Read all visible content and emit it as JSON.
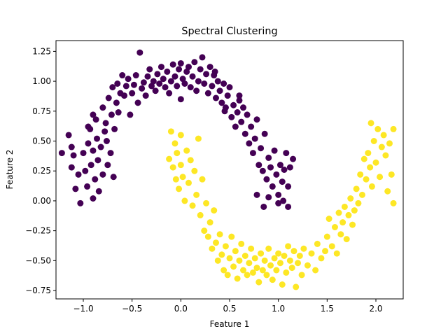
{
  "chart_data": {
    "type": "scatter",
    "title": "Spectral Clustering",
    "xlabel": "Feature 1",
    "ylabel": "Feature 2",
    "xlim": [
      -1.28,
      2.28
    ],
    "ylim": [
      -0.82,
      1.34
    ],
    "xticks": [
      -1.0,
      -0.5,
      0.0,
      0.5,
      1.0,
      1.5,
      2.0
    ],
    "xtick_labels": [
      "−1.0",
      "−0.5",
      "0.0",
      "0.5",
      "1.0",
      "1.5",
      "2.0"
    ],
    "yticks": [
      -0.75,
      -0.5,
      -0.25,
      0.0,
      0.25,
      0.5,
      0.75,
      1.0,
      1.25
    ],
    "ytick_labels": [
      "−0.75",
      "−0.50",
      "−0.25",
      "0.00",
      "0.25",
      "0.50",
      "0.75",
      "1.00",
      "1.25"
    ],
    "grid": false,
    "legend": "none",
    "colors": {
      "cluster_0": "#440154",
      "cluster_1": "#fde725"
    },
    "series": [
      {
        "color": "#440154",
        "points": [
          [
            -1.22,
            0.4
          ],
          [
            -1.15,
            0.55
          ],
          [
            -1.12,
            0.28
          ],
          [
            -1.1,
            0.38
          ],
          [
            -1.08,
            0.1
          ],
          [
            -1.05,
            0.22
          ],
          [
            -1.03,
            -0.02
          ],
          [
            -1.0,
            0.4
          ],
          [
            -0.98,
            0.25
          ],
          [
            -0.96,
            0.12
          ],
          [
            -0.95,
            0.48
          ],
          [
            -0.93,
            0.6
          ],
          [
            -0.92,
            0.3
          ],
          [
            -0.9,
            0.02
          ],
          [
            -0.9,
            0.42
          ],
          [
            -0.88,
            0.18
          ],
          [
            -0.87,
            0.68
          ],
          [
            -0.86,
            0.52
          ],
          [
            -0.85,
            0.34
          ],
          [
            -0.84,
            0.08
          ],
          [
            -0.82,
            0.45
          ],
          [
            -0.8,
            0.78
          ],
          [
            -0.8,
            0.22
          ],
          [
            -0.78,
            0.58
          ],
          [
            -0.77,
            0.65
          ],
          [
            -0.76,
            0.5
          ],
          [
            -0.75,
            0.3
          ],
          [
            -0.74,
            0.86
          ],
          [
            -0.72,
            0.4
          ],
          [
            -0.71,
            0.72
          ],
          [
            -0.7,
            0.95
          ],
          [
            -0.69,
            0.2
          ],
          [
            -0.68,
            0.6
          ],
          [
            -0.66,
            0.82
          ],
          [
            -0.65,
            0.98
          ],
          [
            -0.64,
            0.74
          ],
          [
            -0.62,
            0.9
          ],
          [
            -0.6,
            1.05
          ],
          [
            -0.58,
            0.88
          ],
          [
            -0.56,
            0.96
          ],
          [
            -0.54,
            1.02
          ],
          [
            -0.52,
            0.72
          ],
          [
            -0.5,
            0.9
          ],
          [
            -0.48,
            0.97
          ],
          [
            -0.46,
            1.05
          ],
          [
            -0.44,
            0.82
          ],
          [
            -0.42,
            1.24
          ],
          [
            -0.4,
            0.94
          ],
          [
            -0.38,
            0.99
          ],
          [
            -0.36,
            0.88
          ],
          [
            -0.34,
            1.04
          ],
          [
            -0.32,
            1.1
          ],
          [
            -0.3,
            0.96
          ],
          [
            -0.28,
            1.0
          ],
          [
            -0.26,
            0.92
          ],
          [
            -0.24,
            1.06
          ],
          [
            -0.22,
            0.98
          ],
          [
            -0.2,
            1.12
          ],
          [
            -0.18,
            1.02
          ],
          [
            -0.16,
            0.95
          ],
          [
            -0.14,
            1.08
          ],
          [
            -0.12,
            0.9
          ],
          [
            -0.1,
            1.0
          ],
          [
            -0.08,
            1.14
          ],
          [
            -0.06,
            1.04
          ],
          [
            -0.04,
            0.96
          ],
          [
            -0.02,
            1.1
          ],
          [
            0.0,
            1.15
          ],
          [
            0.0,
            0.85
          ],
          [
            0.02,
            1.02
          ],
          [
            0.04,
            0.98
          ],
          [
            0.06,
            1.08
          ],
          [
            0.08,
            1.12
          ],
          [
            0.1,
            0.95
          ],
          [
            0.12,
            1.04
          ],
          [
            0.14,
            1.16
          ],
          [
            0.16,
            0.92
          ],
          [
            0.18,
            1.0
          ],
          [
            0.2,
            1.1
          ],
          [
            0.22,
            1.2
          ],
          [
            0.24,
            0.98
          ],
          [
            0.26,
            1.06
          ],
          [
            0.28,
            0.9
          ],
          [
            0.3,
            1.12
          ],
          [
            0.32,
            0.96
          ],
          [
            0.34,
            1.05
          ],
          [
            0.36,
            0.86
          ],
          [
            0.38,
            1.0
          ],
          [
            0.4,
            0.92
          ],
          [
            0.42,
            0.82
          ],
          [
            0.44,
            0.98
          ],
          [
            0.46,
            0.78
          ],
          [
            0.48,
            0.88
          ],
          [
            0.5,
            0.95
          ],
          [
            0.52,
            0.7
          ],
          [
            0.54,
            0.8
          ],
          [
            0.56,
            0.62
          ],
          [
            0.58,
            0.74
          ],
          [
            0.6,
            0.84
          ],
          [
            0.62,
            0.66
          ],
          [
            0.64,
            0.78
          ],
          [
            0.66,
            0.56
          ],
          [
            0.68,
            0.72
          ],
          [
            0.7,
            0.48
          ],
          [
            0.72,
            0.62
          ],
          [
            0.74,
            0.4
          ],
          [
            0.76,
            0.52
          ],
          [
            0.78,
            0.68
          ],
          [
            0.8,
            0.3
          ],
          [
            0.82,
            0.44
          ],
          [
            0.84,
            0.25
          ],
          [
            0.86,
            0.56
          ],
          [
            0.88,
            0.18
          ],
          [
            0.9,
            0.36
          ],
          [
            0.92,
            0.28
          ],
          [
            0.94,
            0.12
          ],
          [
            0.96,
            0.42
          ],
          [
            0.98,
            0.22
          ],
          [
            1.0,
            0.05
          ],
          [
            1.02,
            0.3
          ],
          [
            1.04,
            0.16
          ],
          [
            1.06,
            0.26
          ],
          [
            1.08,
            0.4
          ],
          [
            1.1,
            0.12
          ],
          [
            1.12,
            0.28
          ],
          [
            1.15,
            0.35
          ],
          [
            0.78,
            0.05
          ],
          [
            0.85,
            -0.05
          ],
          [
            0.9,
            0.03
          ],
          [
            1.0,
            -0.02
          ],
          [
            1.05,
            0.0
          ],
          [
            1.1,
            -0.05
          ],
          [
            0.6,
            0.88
          ],
          [
            0.45,
            0.75
          ],
          [
            0.35,
            1.08
          ],
          [
            -0.9,
            0.72
          ],
          [
            -0.95,
            0.62
          ],
          [
            -1.12,
            0.45
          ]
        ]
      },
      {
        "color": "#fde725",
        "points": [
          [
            -0.1,
            0.58
          ],
          [
            -0.12,
            0.35
          ],
          [
            -0.08,
            0.28
          ],
          [
            -0.06,
            0.48
          ],
          [
            -0.05,
            0.18
          ],
          [
            -0.04,
            0.4
          ],
          [
            -0.02,
            0.1
          ],
          [
            0.0,
            0.55
          ],
          [
            0.0,
            0.3
          ],
          [
            0.02,
            0.2
          ],
          [
            0.04,
            0.0
          ],
          [
            0.06,
            0.42
          ],
          [
            0.08,
            0.15
          ],
          [
            0.1,
            0.34
          ],
          [
            0.12,
            -0.04
          ],
          [
            0.14,
            0.25
          ],
          [
            0.16,
            0.05
          ],
          [
            0.18,
            0.52
          ],
          [
            0.2,
            -0.12
          ],
          [
            0.22,
            0.18
          ],
          [
            0.24,
            -0.25
          ],
          [
            0.26,
            -0.02
          ],
          [
            0.28,
            -0.3
          ],
          [
            0.3,
            -0.18
          ],
          [
            0.32,
            -0.4
          ],
          [
            0.34,
            -0.08
          ],
          [
            0.36,
            -0.35
          ],
          [
            0.38,
            -0.5
          ],
          [
            0.4,
            -0.28
          ],
          [
            0.42,
            -0.45
          ],
          [
            0.44,
            -0.58
          ],
          [
            0.46,
            -0.38
          ],
          [
            0.48,
            -0.62
          ],
          [
            0.5,
            -0.48
          ],
          [
            0.52,
            -0.3
          ],
          [
            0.54,
            -0.55
          ],
          [
            0.56,
            -0.42
          ],
          [
            0.58,
            -0.65
          ],
          [
            0.6,
            -0.5
          ],
          [
            0.62,
            -0.36
          ],
          [
            0.64,
            -0.58
          ],
          [
            0.66,
            -0.46
          ],
          [
            0.68,
            -0.62
          ],
          [
            0.7,
            -0.52
          ],
          [
            0.72,
            -0.4
          ],
          [
            0.74,
            -0.6
          ],
          [
            0.76,
            -0.48
          ],
          [
            0.78,
            -0.56
          ],
          [
            0.8,
            -0.68
          ],
          [
            0.82,
            -0.44
          ],
          [
            0.84,
            -0.58
          ],
          [
            0.86,
            -0.5
          ],
          [
            0.88,
            -0.62
          ],
          [
            0.9,
            -0.4
          ],
          [
            0.92,
            -0.54
          ],
          [
            0.94,
            -0.66
          ],
          [
            0.96,
            -0.48
          ],
          [
            0.98,
            -0.58
          ],
          [
            1.0,
            -0.44
          ],
          [
            1.02,
            -0.52
          ],
          [
            1.04,
            -0.7
          ],
          [
            1.06,
            -0.46
          ],
          [
            1.08,
            -0.6
          ],
          [
            1.1,
            -0.38
          ],
          [
            1.12,
            -0.5
          ],
          [
            1.14,
            -0.56
          ],
          [
            1.16,
            -0.42
          ],
          [
            1.18,
            -0.72
          ],
          [
            1.2,
            -0.52
          ],
          [
            1.22,
            -0.46
          ],
          [
            1.24,
            -0.62
          ],
          [
            1.26,
            -0.4
          ],
          [
            1.3,
            -0.54
          ],
          [
            1.34,
            -0.44
          ],
          [
            1.38,
            -0.58
          ],
          [
            1.4,
            -0.36
          ],
          [
            1.44,
            -0.48
          ],
          [
            1.48,
            -0.42
          ],
          [
            1.5,
            -0.3
          ],
          [
            1.52,
            -0.15
          ],
          [
            1.55,
            -0.38
          ],
          [
            1.58,
            -0.22
          ],
          [
            1.6,
            -0.44
          ],
          [
            1.62,
            -0.1
          ],
          [
            1.64,
            -0.28
          ],
          [
            1.66,
            -0.18
          ],
          [
            1.68,
            -0.05
          ],
          [
            1.7,
            -0.32
          ],
          [
            1.72,
            -0.12
          ],
          [
            1.74,
            0.02
          ],
          [
            1.76,
            -0.2
          ],
          [
            1.78,
            -0.08
          ],
          [
            1.8,
            0.1
          ],
          [
            1.82,
            -0.02
          ],
          [
            1.84,
            0.22
          ],
          [
            1.86,
            0.05
          ],
          [
            1.88,
            0.35
          ],
          [
            1.9,
            0.18
          ],
          [
            1.92,
            0.4
          ],
          [
            1.94,
            0.28
          ],
          [
            1.96,
            0.12
          ],
          [
            1.98,
            0.5
          ],
          [
            2.0,
            0.32
          ],
          [
            2.02,
            0.6
          ],
          [
            2.04,
            0.2
          ],
          [
            2.06,
            0.45
          ],
          [
            2.08,
            0.55
          ],
          [
            2.1,
            0.38
          ],
          [
            2.12,
            0.08
          ],
          [
            2.14,
            0.48
          ],
          [
            2.16,
            0.22
          ],
          [
            2.18,
            0.6
          ],
          [
            2.18,
            -0.02
          ],
          [
            1.95,
            0.65
          ]
        ]
      }
    ]
  }
}
